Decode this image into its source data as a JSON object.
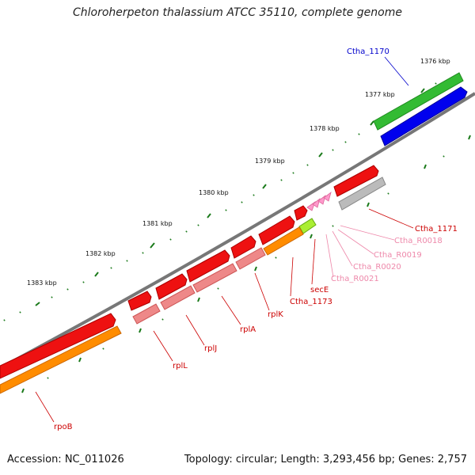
{
  "title": "Chloroherpeton thalassium ATCC 35110, complete genome",
  "footer": {
    "accession": "Accession: NC_011026",
    "summary": "Topology: circular; Length: 3,293,456 bp; Genes: 2,757"
  },
  "kbp_labels": [
    "1376 kbp",
    "1377 kbp",
    "1378 kbp",
    "1379 kbp",
    "1380 kbp",
    "1381 kbp",
    "1382 kbp",
    "1383 kbp"
  ],
  "gene_labels": [
    {
      "text": "Ctha_1170",
      "color": "#0000cc"
    },
    {
      "text": "Ctha_1171",
      "color": "#cc0000"
    },
    {
      "text": "Ctha_R0018",
      "color": "#ee88aa"
    },
    {
      "text": "Ctha_R0019",
      "color": "#ee88aa"
    },
    {
      "text": "Ctha_R0020",
      "color": "#ee88aa"
    },
    {
      "text": "Ctha_R0021",
      "color": "#ee88aa"
    },
    {
      "text": "secE",
      "color": "#cc0000"
    },
    {
      "text": "Ctha_1173",
      "color": "#cc0000"
    },
    {
      "text": "rplK",
      "color": "#cc0000"
    },
    {
      "text": "rplA",
      "color": "#cc0000"
    },
    {
      "text": "rplJ",
      "color": "#cc0000"
    },
    {
      "text": "rplL",
      "color": "#cc0000"
    },
    {
      "text": "rpoB",
      "color": "#cc0000"
    }
  ],
  "colors": {
    "cds": "#ee1111",
    "cog": "#ff8c00",
    "trna": "#ff99cc",
    "misc": "#aaaaaa",
    "green": "#33bb33",
    "blue": "#0000ee",
    "backbone": "#777777",
    "tick": "#1a7a1a"
  }
}
